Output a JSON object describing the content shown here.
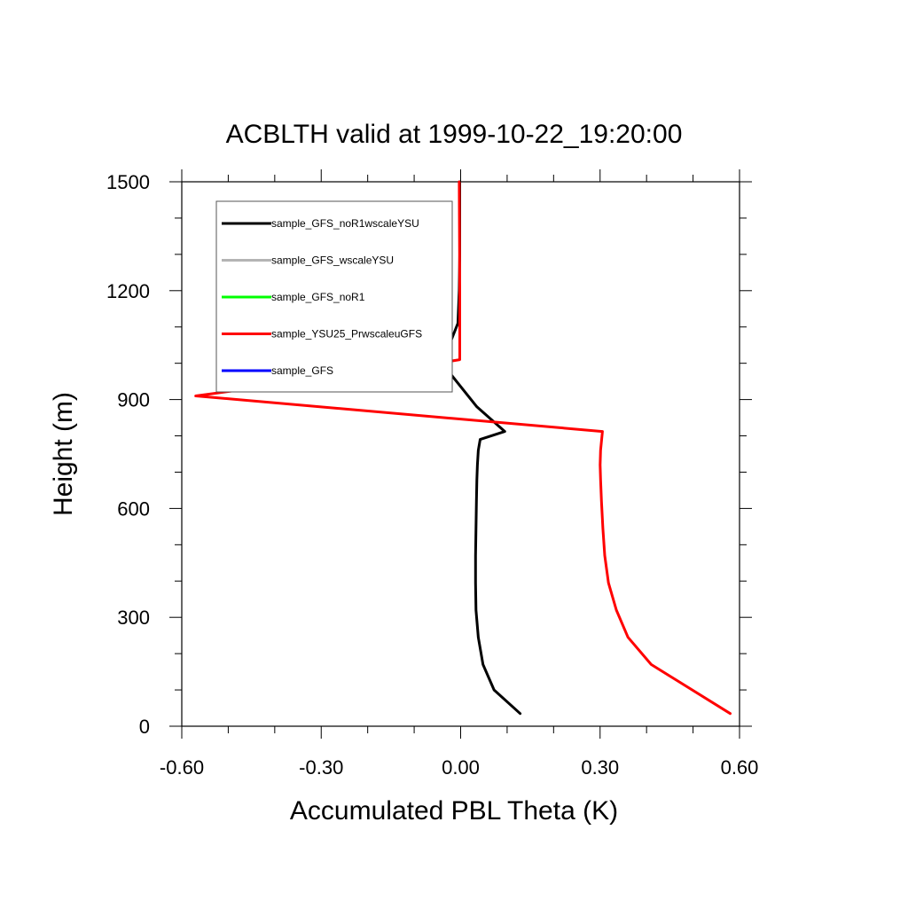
{
  "chart_data": {
    "type": "line",
    "title": "ACBLTH valid at 1999-10-22_19:20:00",
    "xlabel": "Accumulated PBL Theta (K)",
    "ylabel": "Height (m)",
    "xlim": [
      -0.6,
      0.6
    ],
    "ylim": [
      0,
      1500
    ],
    "xticks": [
      -0.6,
      -0.3,
      0.0,
      0.3,
      0.6
    ],
    "xtick_labels": [
      "-0.60",
      "-0.30",
      "0.00",
      "0.30",
      "0.60"
    ],
    "yticks": [
      0,
      300,
      600,
      900,
      1200,
      1500
    ],
    "ytick_labels": [
      "0",
      "300",
      "600",
      "900",
      "1200",
      "1500"
    ],
    "legend_position": "top-left",
    "grid": false,
    "series": [
      {
        "name": "sample_GFS_noR1wscaleYSU",
        "color": "#000000",
        "x": [
          0.128,
          0.072,
          0.048,
          0.038,
          0.033,
          0.032,
          0.032,
          0.033,
          0.034,
          0.035,
          0.036,
          0.038,
          0.042,
          0.095,
          0.035,
          -0.04,
          -0.006,
          -0.003,
          -0.002,
          -0.002
        ],
        "y": [
          35,
          100,
          170,
          245,
          320,
          395,
          470,
          545,
          620,
          680,
          720,
          760,
          790,
          812,
          880,
          1000,
          1110,
          1200,
          1300,
          1500
        ]
      },
      {
        "name": "sample_GFS_wscaleYSU",
        "color": "#b4b4b4",
        "x": [],
        "y": []
      },
      {
        "name": "sample_GFS_noR1",
        "color": "#00ff00",
        "x": [],
        "y": []
      },
      {
        "name": "sample_YSU25_PrwscaleuGFS",
        "color": "#ff0000",
        "x": [
          0.58,
          0.41,
          0.36,
          0.335,
          0.318,
          0.31,
          0.306,
          0.303,
          0.301,
          0.3,
          0.301,
          0.305,
          -0.57,
          -0.05,
          -0.002,
          -0.002,
          -0.002,
          -0.003
        ],
        "y": [
          35,
          170,
          245,
          320,
          395,
          470,
          545,
          620,
          680,
          720,
          760,
          812,
          910,
          1000,
          1010,
          1110,
          1200,
          1500
        ]
      },
      {
        "name": "sample_GFS",
        "color": "#0000ff",
        "x": [],
        "y": []
      }
    ]
  }
}
